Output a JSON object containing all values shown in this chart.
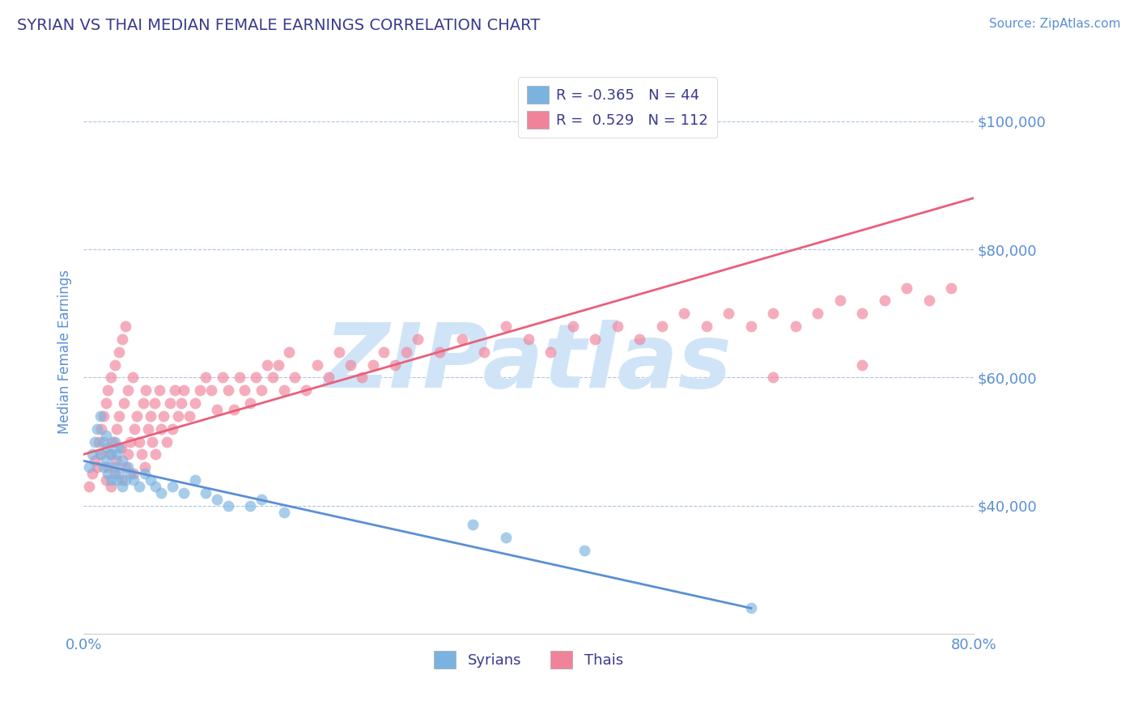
{
  "title": "SYRIAN VS THAI MEDIAN FEMALE EARNINGS CORRELATION CHART",
  "source_text": "Source: ZipAtlas.com",
  "ylabel": "Median Female Earnings",
  "xlim": [
    0.0,
    0.8
  ],
  "ylim": [
    20000,
    108000
  ],
  "xtick_labels": [
    "0.0%",
    "",
    "",
    "",
    "80.0%"
  ],
  "xtick_values": [
    0.0,
    0.2,
    0.4,
    0.6,
    0.8
  ],
  "ytick_labels": [
    "$40,000",
    "$60,000",
    "$80,000",
    "$100,000"
  ],
  "ytick_values": [
    40000,
    60000,
    80000,
    100000
  ],
  "title_color": "#3a3a8c",
  "axis_color": "#5b8fd4",
  "tick_color": "#5b8fd4",
  "grid_color": "#b0c4de",
  "source_color": "#5b8fd4",
  "syrian_color": "#7ab3e0",
  "thai_color": "#f0829a",
  "syrian_line_color": "#5b8fd4",
  "thai_line_color": "#e8607a",
  "watermark_color": "#d0e4f8",
  "R_syrian": -0.365,
  "N_syrian": 44,
  "R_thai": 0.529,
  "N_thai": 112,
  "syrian_scatter_x": [
    0.005,
    0.008,
    0.01,
    0.012,
    0.015,
    0.015,
    0.018,
    0.018,
    0.02,
    0.02,
    0.022,
    0.022,
    0.025,
    0.025,
    0.028,
    0.028,
    0.03,
    0.03,
    0.032,
    0.032,
    0.035,
    0.035,
    0.038,
    0.04,
    0.042,
    0.045,
    0.05,
    0.055,
    0.06,
    0.065,
    0.07,
    0.08,
    0.09,
    0.1,
    0.11,
    0.12,
    0.13,
    0.15,
    0.16,
    0.18,
    0.35,
    0.38,
    0.45,
    0.6
  ],
  "syrian_scatter_y": [
    46000,
    48000,
    50000,
    52000,
    48000,
    54000,
    46000,
    50000,
    47000,
    51000,
    45000,
    49000,
    44000,
    48000,
    46000,
    50000,
    44000,
    48000,
    45000,
    49000,
    43000,
    47000,
    44000,
    46000,
    45000,
    44000,
    43000,
    45000,
    44000,
    43000,
    42000,
    43000,
    42000,
    44000,
    42000,
    41000,
    40000,
    40000,
    41000,
    39000,
    37000,
    35000,
    33000,
    24000
  ],
  "thai_scatter_x": [
    0.005,
    0.008,
    0.01,
    0.012,
    0.014,
    0.015,
    0.016,
    0.018,
    0.02,
    0.02,
    0.022,
    0.022,
    0.024,
    0.025,
    0.025,
    0.026,
    0.028,
    0.028,
    0.03,
    0.03,
    0.032,
    0.032,
    0.034,
    0.035,
    0.035,
    0.036,
    0.038,
    0.038,
    0.04,
    0.04,
    0.042,
    0.044,
    0.045,
    0.046,
    0.048,
    0.05,
    0.052,
    0.054,
    0.055,
    0.056,
    0.058,
    0.06,
    0.062,
    0.064,
    0.065,
    0.068,
    0.07,
    0.072,
    0.075,
    0.078,
    0.08,
    0.082,
    0.085,
    0.088,
    0.09,
    0.095,
    0.1,
    0.105,
    0.11,
    0.115,
    0.12,
    0.125,
    0.13,
    0.135,
    0.14,
    0.145,
    0.15,
    0.155,
    0.16,
    0.165,
    0.17,
    0.175,
    0.18,
    0.185,
    0.19,
    0.2,
    0.21,
    0.22,
    0.23,
    0.24,
    0.25,
    0.26,
    0.27,
    0.28,
    0.29,
    0.3,
    0.32,
    0.34,
    0.36,
    0.38,
    0.4,
    0.42,
    0.44,
    0.46,
    0.48,
    0.5,
    0.52,
    0.54,
    0.56,
    0.58,
    0.6,
    0.62,
    0.64,
    0.66,
    0.68,
    0.7,
    0.72,
    0.74,
    0.76,
    0.78,
    0.62,
    0.7
  ],
  "thai_scatter_y": [
    43000,
    45000,
    47000,
    46000,
    50000,
    48000,
    52000,
    54000,
    44000,
    56000,
    46000,
    58000,
    48000,
    43000,
    60000,
    50000,
    45000,
    62000,
    47000,
    52000,
    54000,
    64000,
    49000,
    44000,
    66000,
    56000,
    46000,
    68000,
    48000,
    58000,
    50000,
    60000,
    45000,
    52000,
    54000,
    50000,
    48000,
    56000,
    46000,
    58000,
    52000,
    54000,
    50000,
    56000,
    48000,
    58000,
    52000,
    54000,
    50000,
    56000,
    52000,
    58000,
    54000,
    56000,
    58000,
    54000,
    56000,
    58000,
    60000,
    58000,
    55000,
    60000,
    58000,
    55000,
    60000,
    58000,
    56000,
    60000,
    58000,
    62000,
    60000,
    62000,
    58000,
    64000,
    60000,
    58000,
    62000,
    60000,
    64000,
    62000,
    60000,
    62000,
    64000,
    62000,
    64000,
    66000,
    64000,
    66000,
    64000,
    68000,
    66000,
    64000,
    68000,
    66000,
    68000,
    66000,
    68000,
    70000,
    68000,
    70000,
    68000,
    70000,
    68000,
    70000,
    72000,
    70000,
    72000,
    74000,
    72000,
    74000,
    60000,
    62000
  ],
  "background_color": "#ffffff",
  "legend_color": "#3a3a8c",
  "watermark_text": "ZIPatlas",
  "legend_R_syrian": "R = -0.365",
  "legend_R_thai": "R =  0.529",
  "legend_N_syrian": "N = 44",
  "legend_N_thai": "N = 112"
}
